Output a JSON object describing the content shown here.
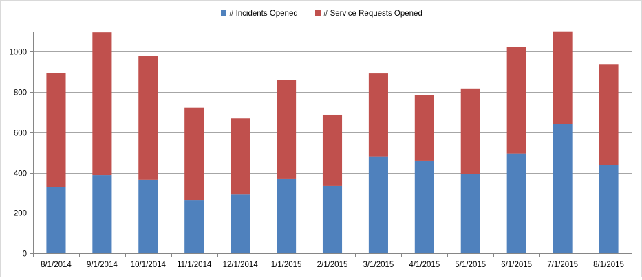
{
  "chart_data": {
    "type": "bar",
    "stacked": true,
    "categories": [
      "8/1/2014",
      "9/1/2014",
      "10/1/2014",
      "11/1/2014",
      "12/1/2014",
      "1/1/2015",
      "2/1/2015",
      "3/1/2015",
      "4/1/2015",
      "5/1/2015",
      "6/1/2015",
      "7/1/2015",
      "8/1/2015"
    ],
    "series": [
      {
        "name": "# Incidents Opened",
        "color": "#4f81bd",
        "values": [
          328,
          388,
          365,
          262,
          292,
          368,
          334,
          478,
          460,
          393,
          495,
          643,
          437
        ]
      },
      {
        "name": "# Service Requests Opened",
        "color": "#c0504d",
        "values": [
          566,
          708,
          615,
          461,
          378,
          493,
          354,
          414,
          324,
          425,
          530,
          458,
          502
        ]
      }
    ],
    "ylim": [
      0,
      1100
    ],
    "yticks": [
      0,
      200,
      400,
      600,
      800,
      1000
    ],
    "grid": true,
    "legend_position": "top",
    "xlabel": "",
    "ylabel": "",
    "title": ""
  }
}
